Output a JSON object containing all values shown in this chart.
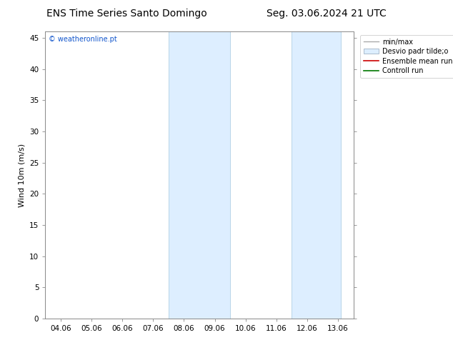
{
  "title_left": "ENS Time Series Santo Domingo",
  "title_right": "Seg. 03.06.2024 21 UTC",
  "ylabel": "Wind 10m (m/s)",
  "watermark": "© weatheronline.pt",
  "ylim": [
    0,
    46
  ],
  "yticks": [
    0,
    5,
    10,
    15,
    20,
    25,
    30,
    35,
    40,
    45
  ],
  "xtick_labels": [
    "04.06",
    "05.06",
    "06.06",
    "07.06",
    "08.06",
    "09.06",
    "10.06",
    "11.06",
    "12.06",
    "13.06"
  ],
  "xtick_positions": [
    0,
    1,
    2,
    3,
    4,
    5,
    6,
    7,
    8,
    9
  ],
  "shaded_bands": [
    {
      "x_start": 3.5,
      "x_end": 5.5
    },
    {
      "x_start": 7.5,
      "x_end": 9.1
    }
  ],
  "shade_color": "#ddeeff",
  "band_edge_color": "#b8d4e8",
  "background_color": "#ffffff",
  "legend_labels": [
    "min/max",
    "Desvio padr tilde;o",
    "Ensemble mean run",
    "Controll run"
  ],
  "title_fontsize": 10,
  "axis_fontsize": 8,
  "tick_fontsize": 7.5,
  "watermark_color": "#1155cc",
  "spine_color": "#444444",
  "grid_color": "#dddddd"
}
